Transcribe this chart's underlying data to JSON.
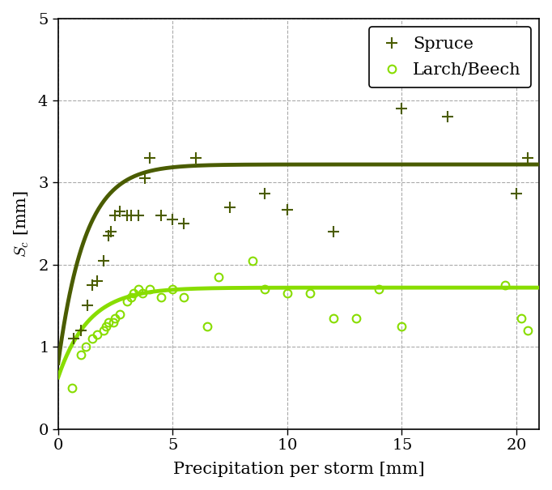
{
  "spruce_x": [
    0.7,
    1.0,
    1.3,
    1.5,
    1.7,
    2.0,
    2.2,
    2.3,
    2.5,
    2.7,
    3.0,
    3.2,
    3.5,
    3.8,
    4.0,
    4.5,
    5.0,
    5.5,
    6.0,
    7.5,
    9.0,
    10.0,
    12.0,
    15.0,
    17.0,
    20.0,
    20.5
  ],
  "spruce_y": [
    1.1,
    1.2,
    1.5,
    1.75,
    1.8,
    2.05,
    2.35,
    2.4,
    2.6,
    2.65,
    2.6,
    2.6,
    2.6,
    3.05,
    3.3,
    2.6,
    2.55,
    2.5,
    3.3,
    2.7,
    2.87,
    2.67,
    2.4,
    3.9,
    3.8,
    2.87,
    3.3
  ],
  "beech_x": [
    0.6,
    1.0,
    1.2,
    1.5,
    1.7,
    2.0,
    2.1,
    2.2,
    2.4,
    2.5,
    2.7,
    3.0,
    3.2,
    3.3,
    3.5,
    3.7,
    4.0,
    4.5,
    5.0,
    5.5,
    6.5,
    7.0,
    8.5,
    9.0,
    10.0,
    11.0,
    12.0,
    13.0,
    14.0,
    15.0,
    19.5,
    20.2,
    20.5
  ],
  "beech_y": [
    0.5,
    0.9,
    1.0,
    1.1,
    1.15,
    1.2,
    1.25,
    1.3,
    1.3,
    1.35,
    1.4,
    1.55,
    1.6,
    1.65,
    1.7,
    1.65,
    1.7,
    1.6,
    1.7,
    1.6,
    1.25,
    1.85,
    2.05,
    1.7,
    1.65,
    1.65,
    1.35,
    1.35,
    1.7,
    1.25,
    1.75,
    1.35,
    1.2
  ],
  "spruce_curve_asym": 3.22,
  "spruce_curve_k": 0.85,
  "spruce_curve_c0": 0.78,
  "beech_curve_asym": 1.72,
  "beech_curve_k": 0.75,
  "beech_curve_c0": 0.62,
  "spruce_color": "#4a5c00",
  "beech_color": "#88dd00",
  "xlabel": "Precipitation per storm [mm]",
  "ylabel": "$S_c$ [mm]",
  "xlim": [
    0,
    21
  ],
  "ylim": [
    0,
    5
  ],
  "xticks": [
    0,
    5,
    10,
    15,
    20
  ],
  "yticks": [
    0,
    1,
    2,
    3,
    4,
    5
  ],
  "legend_spruce": "Spruce",
  "legend_beech": "Larch/Beech",
  "figsize": [
    6.82,
    6.05
  ],
  "dpi": 100
}
